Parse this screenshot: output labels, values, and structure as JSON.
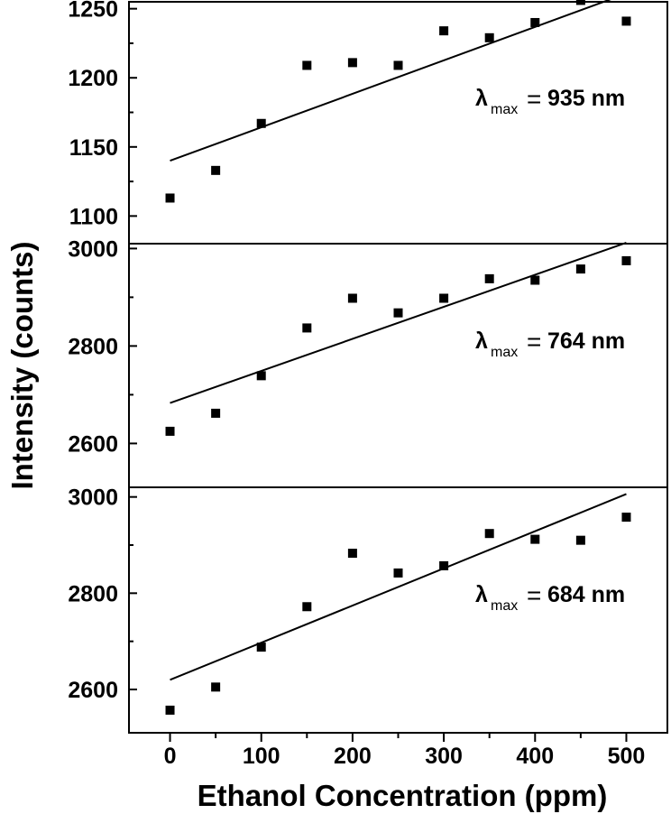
{
  "chart_data": {
    "type": "scatter",
    "xlabel": "Ethanol Concentration (ppm)",
    "ylabel": "Intensity (counts)",
    "x_ticks": [
      0,
      100,
      200,
      300,
      400,
      500
    ],
    "xlim": [
      -45,
      545
    ],
    "x": [
      0,
      50,
      100,
      150,
      200,
      250,
      300,
      350,
      400,
      450,
      500
    ],
    "panels": [
      {
        "annotation": {
          "lambda": "λ",
          "sub": "max",
          "eq": "=",
          "value": "935 nm"
        },
        "ylim": [
          1080,
          1255
        ],
        "y_ticks": [
          1100,
          1150,
          1200,
          1250
        ],
        "y_minor_ticks": [
          1125,
          1175,
          1225
        ],
        "values": [
          1113,
          1133,
          1167,
          1209,
          1211,
          1209,
          1234,
          1229,
          1240,
          1256,
          1241
        ],
        "fit": {
          "y_at_x0": 1140,
          "y_at_x500": 1261
        }
      },
      {
        "annotation": {
          "lambda": "λ",
          "sub": "max",
          "eq": "=",
          "value": "764 nm"
        },
        "ylim": [
          2510,
          3010
        ],
        "y_ticks": [
          2600,
          2800,
          3000
        ],
        "y_minor_ticks": [
          2700,
          2900
        ],
        "values": [
          2625,
          2662,
          2739,
          2837,
          2898,
          2868,
          2898,
          2938,
          2935,
          2958,
          2975
        ],
        "fit": {
          "y_at_x0": 2683,
          "y_at_x500": 3012
        }
      },
      {
        "annotation": {
          "lambda": "λ",
          "sub": "max",
          "eq": "=",
          "value": "684 nm"
        },
        "ylim": [
          2510,
          3020
        ],
        "y_ticks": [
          2600,
          2800,
          3000
        ],
        "y_minor_ticks": [
          2700,
          2900
        ],
        "values": [
          2557,
          2605,
          2688,
          2772,
          2883,
          2842,
          2857,
          2924,
          2912,
          2910,
          2958
        ],
        "fit": {
          "y_at_x0": 2620,
          "y_at_x500": 3006
        }
      }
    ]
  }
}
